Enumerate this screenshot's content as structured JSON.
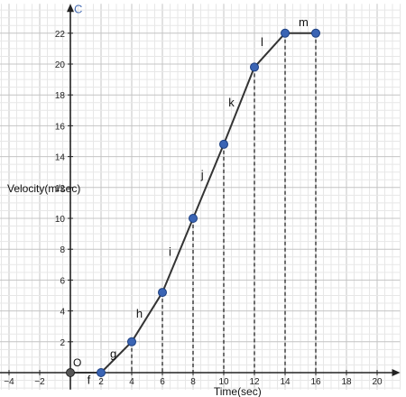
{
  "chart_data": {
    "type": "line",
    "xlabel": "Time(sec)",
    "ylabel": "Velocity(m/sec)",
    "xlim": [
      -5,
      21.5
    ],
    "ylim": [
      -1.1,
      23.9
    ],
    "x_ticks": [
      -4,
      -2,
      2,
      4,
      6,
      8,
      10,
      12,
      14,
      16,
      18,
      20
    ],
    "y_ticks": [
      2,
      4,
      6,
      8,
      10,
      12,
      14,
      16,
      18,
      20,
      22
    ],
    "grid": true,
    "points": [
      {
        "x": 2,
        "y": 0
      },
      {
        "x": 4,
        "y": 2
      },
      {
        "x": 6,
        "y": 5.2
      },
      {
        "x": 8,
        "y": 10
      },
      {
        "x": 10,
        "y": 14.8
      },
      {
        "x": 12,
        "y": 19.8
      },
      {
        "x": 14,
        "y": 22
      },
      {
        "x": 16,
        "y": 22
      }
    ],
    "segment_labels": [
      {
        "name": "f",
        "x": 1.2,
        "y": -0.5
      },
      {
        "name": "g",
        "x": 2.8,
        "y": 1.2
      },
      {
        "name": "h",
        "x": 4.5,
        "y": 3.8
      },
      {
        "name": "i",
        "x": 6.5,
        "y": 7.8
      },
      {
        "name": "j",
        "x": 8.6,
        "y": 12.8
      },
      {
        "name": "k",
        "x": 10.5,
        "y": 17.5
      },
      {
        "name": "l",
        "x": 12.5,
        "y": 21.4
      },
      {
        "name": "m",
        "x": 15.2,
        "y": 22.7
      }
    ],
    "origin_label": "O",
    "y_axis_label": "C",
    "colors": {
      "line": "#333333",
      "point_fill": "#3a64b4",
      "point_stroke": "#1d3f80",
      "axis": "#222222"
    }
  }
}
